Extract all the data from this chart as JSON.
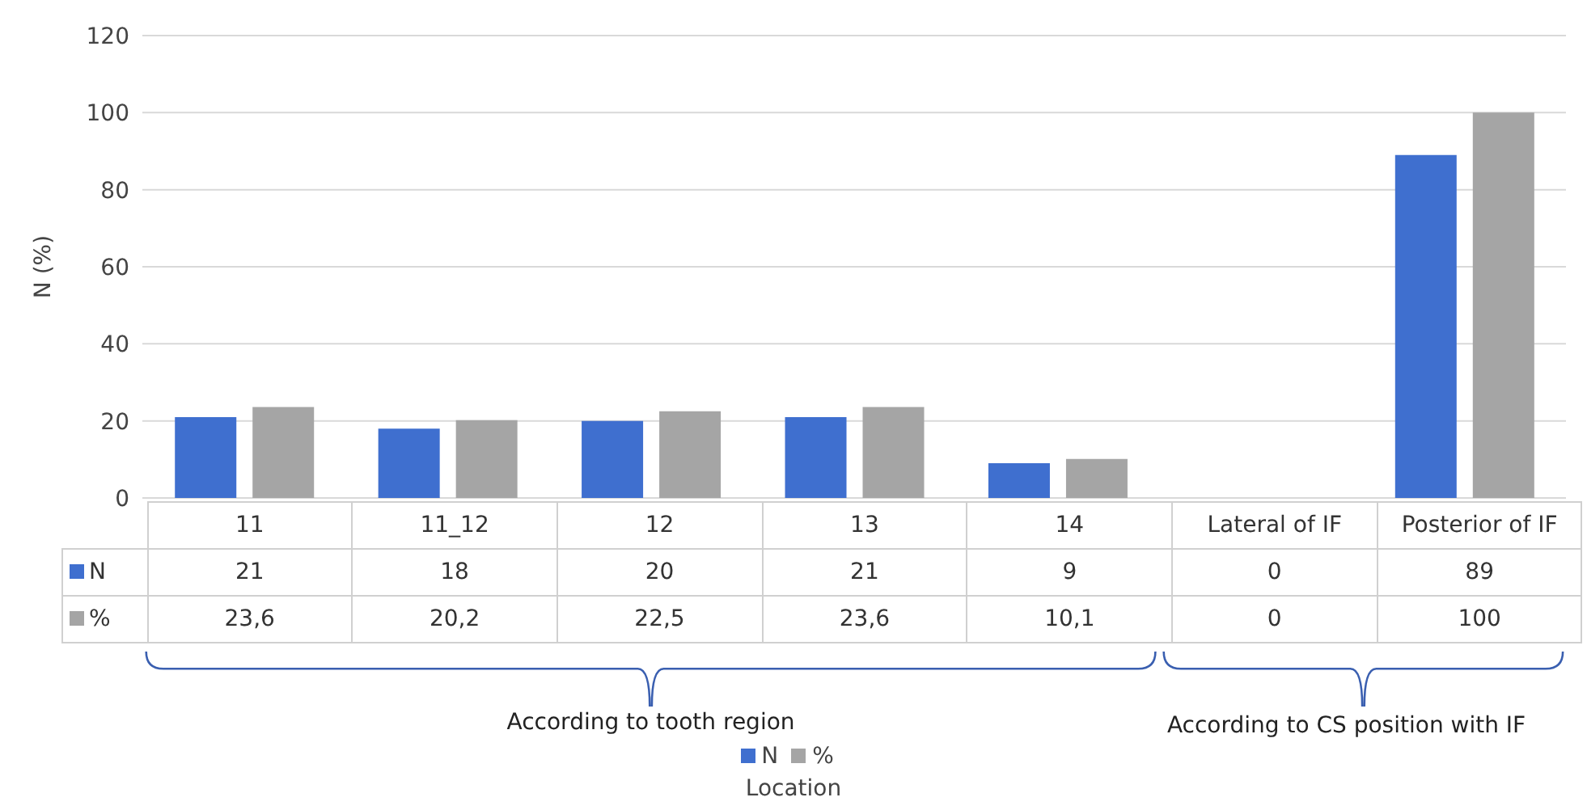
{
  "chart_data": {
    "type": "bar",
    "ylabel": "N (%)",
    "categories": [
      "11",
      "11_12",
      "12",
      "13",
      "14",
      "Lateral of IF",
      "Posterior of IF"
    ],
    "series": [
      {
        "name": "N",
        "color": "#3f6fcf",
        "values": [
          21,
          18,
          20,
          21,
          9,
          0,
          89
        ],
        "value_labels": [
          "21",
          "18",
          "20",
          "21",
          "9",
          "0",
          "89"
        ]
      },
      {
        "name": "%",
        "color": "#a5a5a5",
        "values": [
          23.6,
          20.2,
          22.5,
          23.6,
          10.1,
          0,
          100
        ],
        "value_labels": [
          "23,6",
          "20,2",
          "22,5",
          "23,6",
          "10,1",
          "0",
          "100"
        ]
      }
    ],
    "ylim": [
      0,
      120
    ],
    "yticks": [
      0,
      20,
      40,
      60,
      80,
      100,
      120
    ],
    "grid": "y",
    "legend": "bottom",
    "annotations": [
      "According to tooth region",
      "According to CS position with IF",
      "Location"
    ]
  }
}
